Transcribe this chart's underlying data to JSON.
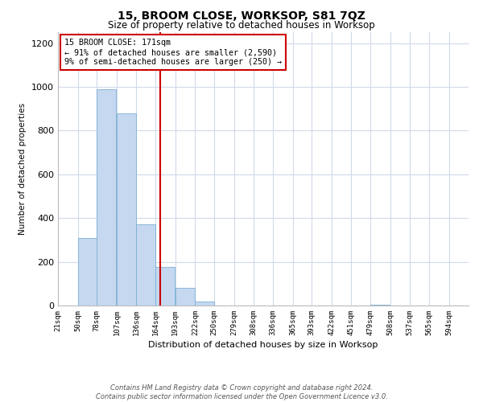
{
  "title": "15, BROOM CLOSE, WORKSOP, S81 7QZ",
  "subtitle": "Size of property relative to detached houses in Worksop",
  "xlabel": "Distribution of detached houses by size in Worksop",
  "ylabel": "Number of detached properties",
  "bin_labels": [
    "21sqm",
    "50sqm",
    "78sqm",
    "107sqm",
    "136sqm",
    "164sqm",
    "193sqm",
    "222sqm",
    "250sqm",
    "279sqm",
    "308sqm",
    "336sqm",
    "365sqm",
    "393sqm",
    "422sqm",
    "451sqm",
    "479sqm",
    "508sqm",
    "537sqm",
    "565sqm",
    "594sqm"
  ],
  "bin_edges": [
    21,
    50,
    78,
    107,
    136,
    164,
    193,
    222,
    250,
    279,
    308,
    336,
    365,
    393,
    422,
    451,
    479,
    508,
    537,
    565,
    594
  ],
  "bar_heights": [
    0,
    310,
    990,
    880,
    370,
    175,
    80,
    20,
    0,
    0,
    0,
    0,
    0,
    0,
    0,
    0,
    5,
    0,
    0,
    0,
    0
  ],
  "bar_color": "#c5d8f0",
  "bar_edge_color": "#7bafd4",
  "property_value": 171,
  "vline_color": "#cc0000",
  "ylim": [
    0,
    1250
  ],
  "yticks": [
    0,
    200,
    400,
    600,
    800,
    1000,
    1200
  ],
  "annotation_title": "15 BROOM CLOSE: 171sqm",
  "annotation_line1": "← 91% of detached houses are smaller (2,590)",
  "annotation_line2": "9% of semi-detached houses are larger (250) →",
  "annotation_box_color": "#ffffff",
  "annotation_box_edge": "#cc0000",
  "footer_line1": "Contains HM Land Registry data © Crown copyright and database right 2024.",
  "footer_line2": "Contains public sector information licensed under the Open Government Licence v3.0.",
  "background_color": "#ffffff",
  "grid_color": "#d0daea"
}
